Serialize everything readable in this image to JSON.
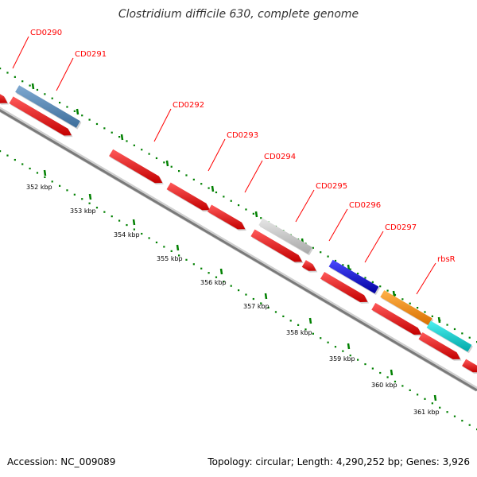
{
  "title": "Clostridium difficile 630, complete genome",
  "footer": {
    "accession": "Accession: NC_009089",
    "stats": "Topology: circular; Length: 4,290,252 bp; Genes: 3,926"
  },
  "colors": {
    "backbone": "#808080",
    "gene_label": "#ff0000",
    "label_line": "#ff0000",
    "tick": "#008000",
    "cds": "#ff0000"
  },
  "gene_labels": [
    "CD0290",
    "CD0291",
    "CD0292",
    "CD0293",
    "CD0294",
    "CD0295",
    "CD0296",
    "CD0297",
    "rbsR"
  ],
  "tick_labels": [
    "352 kbp",
    "353 kbp",
    "354 kbp",
    "355 kbp",
    "356 kbp",
    "357 kbp",
    "358 kbp",
    "359 kbp",
    "360 kbp",
    "361 kbp"
  ],
  "feature_colors": [
    "#4682b4",
    "#c0c0c0",
    "#0000cd",
    "#ff8c00",
    "#00cdcd"
  ]
}
